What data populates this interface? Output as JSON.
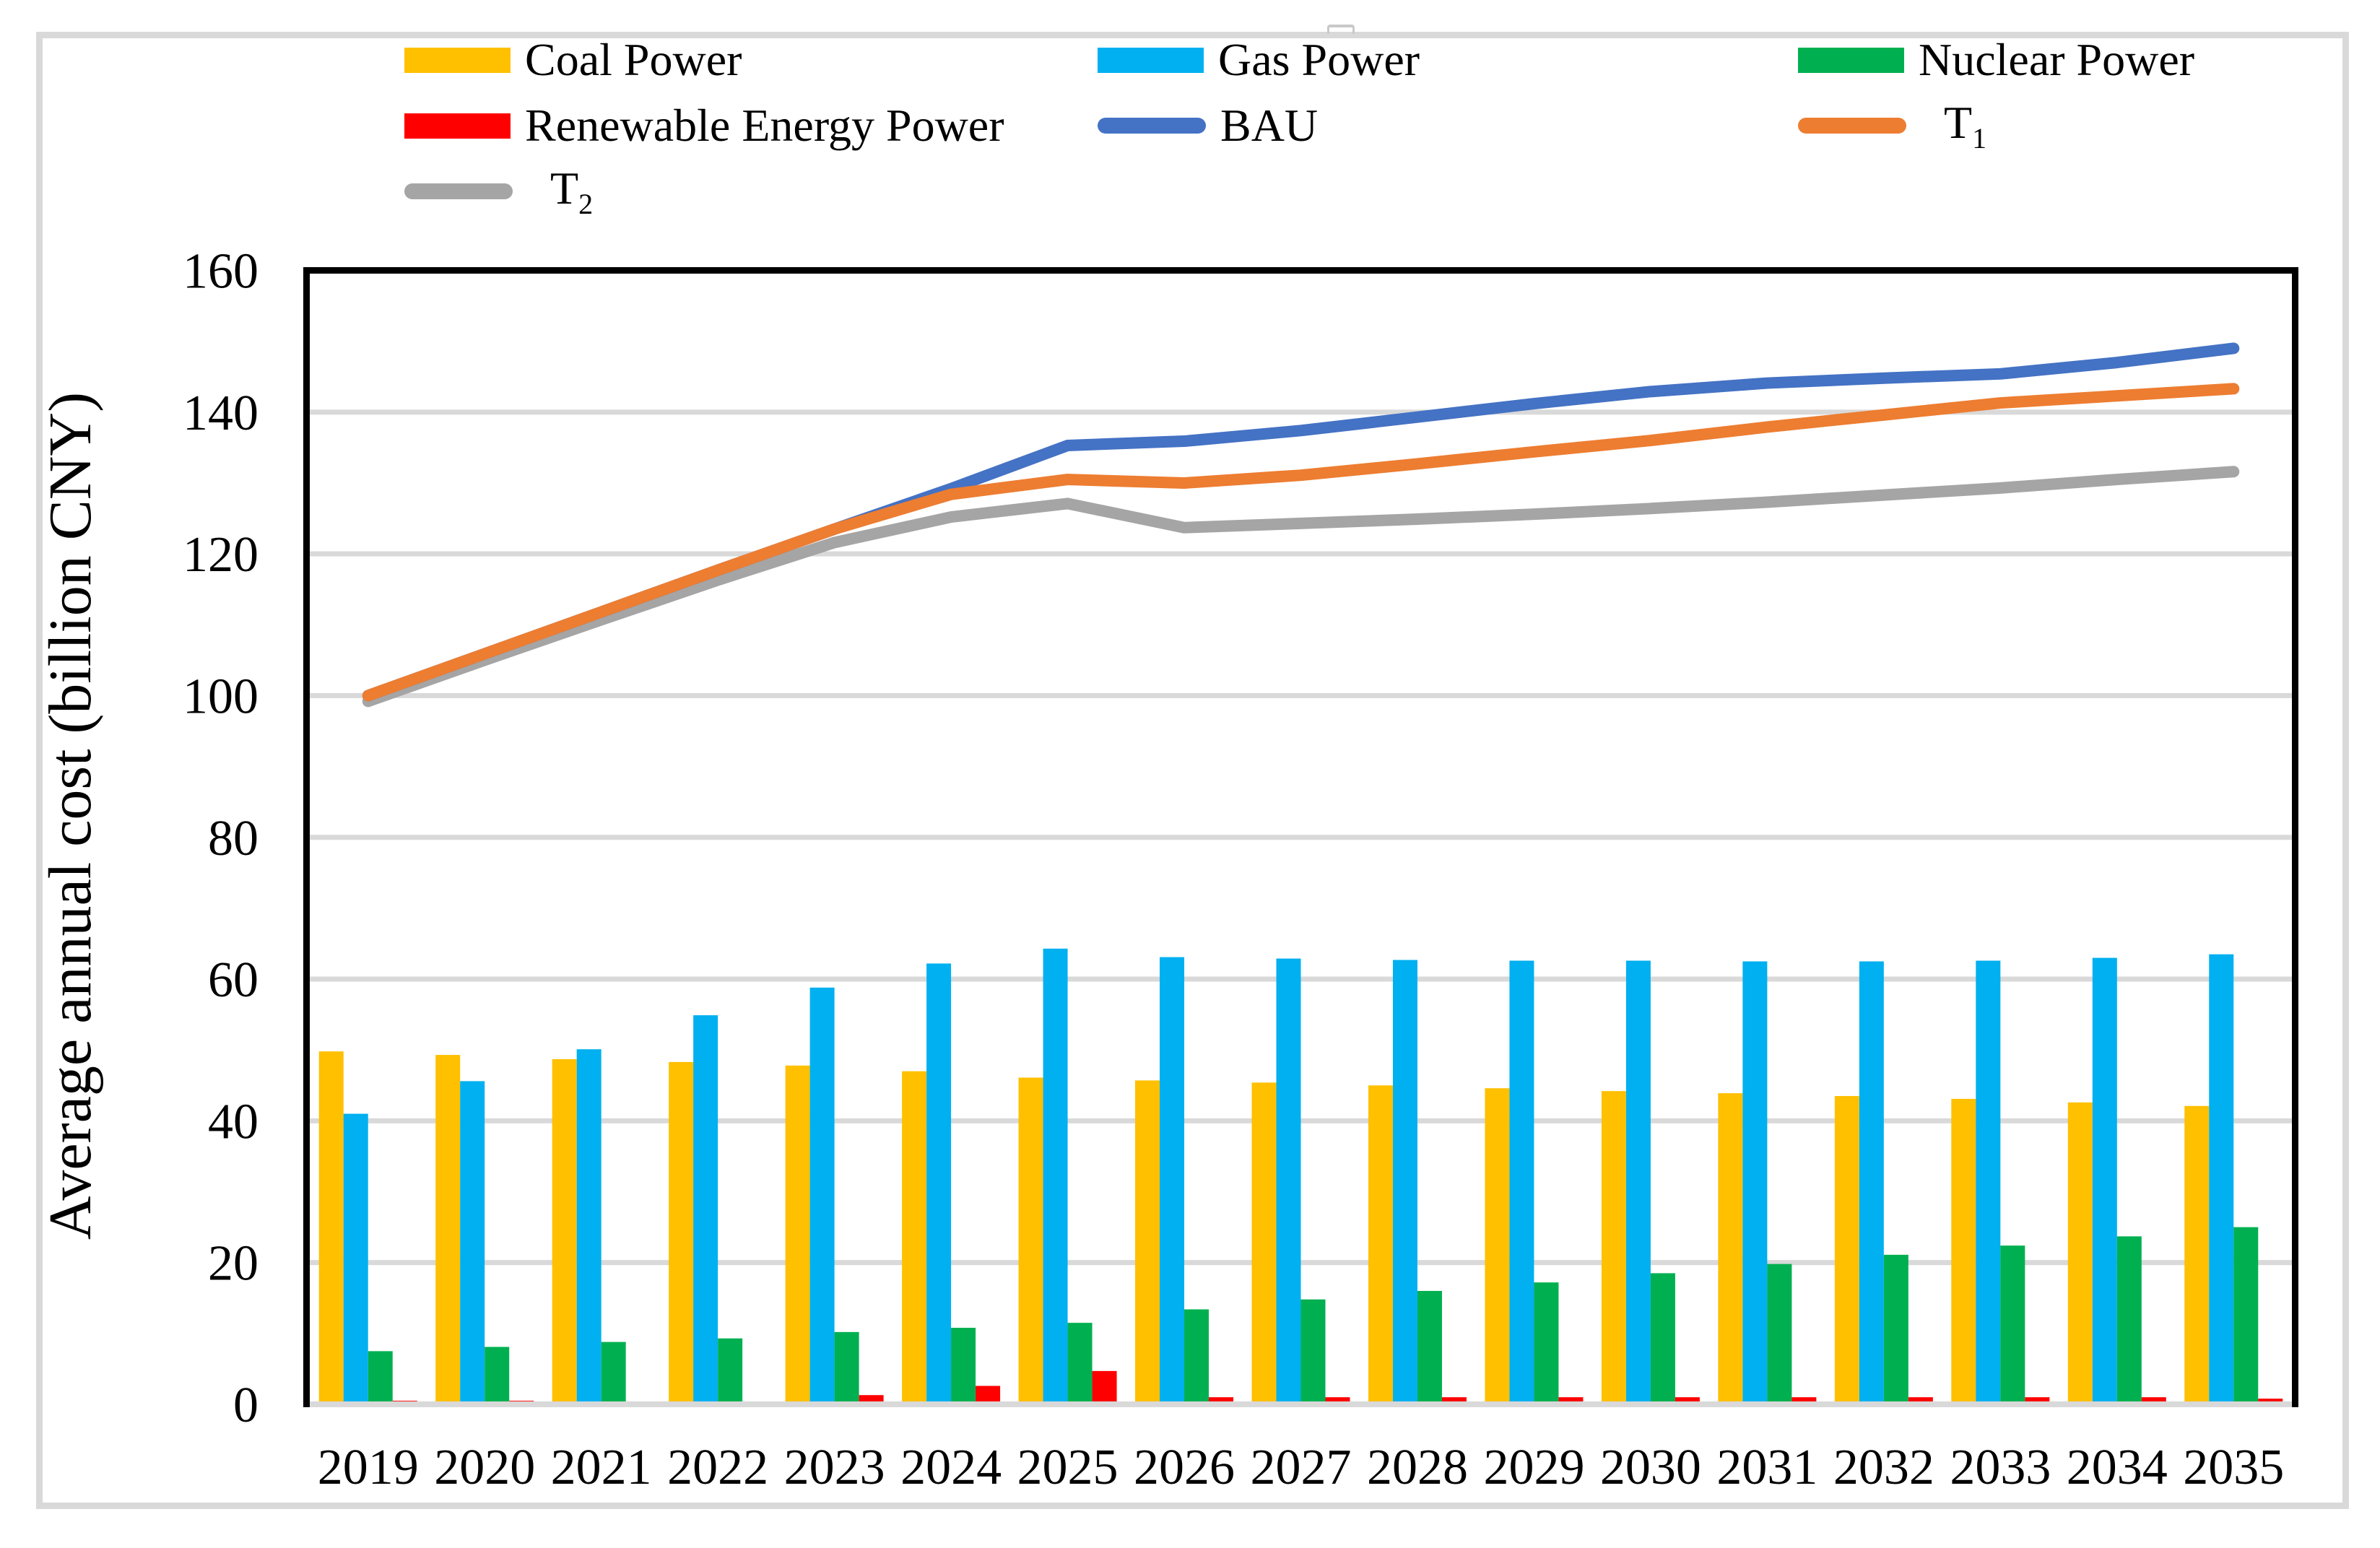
{
  "figure": {
    "background": "#FFFFFF",
    "border_color": "#D9D9D9",
    "grid_color": "#D9D9D9",
    "axis_color": "#000000"
  },
  "legend": {
    "items": [
      {
        "label": "Coal Power",
        "type": "bar",
        "color": "#FFC000",
        "row": 0,
        "col": 0
      },
      {
        "label": "Gas Power",
        "type": "bar",
        "color": "#00B0F0",
        "row": 0,
        "col": 1
      },
      {
        "label": "Nuclear Power",
        "type": "bar",
        "color": "#00B050",
        "row": 0,
        "col": 2
      },
      {
        "label": "Renewable Energy Power",
        "type": "bar",
        "color": "#FF0000",
        "row": 1,
        "col": 0
      },
      {
        "label": "BAU",
        "type": "line",
        "color": "#4472C4",
        "row": 1,
        "col": 1
      },
      {
        "label": "T",
        "subscript": "1",
        "type": "line",
        "color": "#ED7D31",
        "row": 1,
        "col": 2
      },
      {
        "label": "T",
        "subscript": "2",
        "type": "line",
        "color": "#A5A5A5",
        "row": 2,
        "col": 0
      }
    ]
  },
  "chart_data": {
    "type": "bar+line",
    "title": "",
    "xlabel": "",
    "ylabel": "Average annual cost (billion CNY)",
    "grid": "horizontal",
    "legend_position": "top",
    "x": [
      "2019",
      "2020",
      "2021",
      "2022",
      "2023",
      "2024",
      "2025",
      "2026",
      "2027",
      "2028",
      "2029",
      "2030",
      "2031",
      "2032",
      "2033",
      "2034",
      "2035"
    ],
    "y_axis": {
      "min": 0,
      "max": 160,
      "step": 20,
      "ticks": [
        0,
        20,
        40,
        60,
        80,
        100,
        120,
        140,
        160
      ]
    },
    "bar_series": [
      {
        "name": "Coal Power",
        "color": "#FFC000",
        "values": [
          49.8,
          49.3,
          48.7,
          48.3,
          47.8,
          47.0,
          46.1,
          45.7,
          45.4,
          45.0,
          44.6,
          44.2,
          43.9,
          43.5,
          43.1,
          42.6,
          42.1
        ]
      },
      {
        "name": "Gas Power",
        "color": "#00B0F0",
        "values": [
          41.0,
          45.6,
          50.1,
          54.9,
          58.8,
          62.2,
          64.3,
          63.1,
          62.9,
          62.7,
          62.6,
          62.6,
          62.5,
          62.5,
          62.6,
          63.0,
          63.5
        ]
      },
      {
        "name": "Nuclear Power",
        "color": "#00B050",
        "values": [
          7.5,
          8.1,
          8.8,
          9.3,
          10.2,
          10.8,
          11.5,
          13.4,
          14.8,
          16.0,
          17.2,
          18.5,
          19.8,
          21.1,
          22.4,
          23.7,
          25.0
        ]
      },
      {
        "name": "Renewable Energy Power",
        "color": "#FF0000",
        "values": [
          0.5,
          0.5,
          0.4,
          0.4,
          1.3,
          2.6,
          4.7,
          1.0,
          1.0,
          1.0,
          1.0,
          1.0,
          1.0,
          1.0,
          1.0,
          1.0,
          0.8
        ]
      }
    ],
    "line_series": [
      {
        "name": "BAU",
        "color": "#4472C4",
        "values": [
          100.0,
          105.9,
          111.8,
          117.7,
          123.5,
          129.2,
          135.3,
          135.9,
          137.4,
          139.3,
          141.2,
          142.9,
          144.1,
          144.8,
          145.4,
          147.0,
          149.0
        ]
      },
      {
        "name": "T1",
        "color": "#ED7D31",
        "values": [
          100.0,
          105.9,
          111.8,
          117.7,
          123.5,
          128.4,
          130.5,
          130.0,
          131.1,
          132.7,
          134.4,
          136.0,
          137.9,
          139.6,
          141.3,
          142.3,
          143.3
        ]
      },
      {
        "name": "T2",
        "color": "#A5A5A5",
        "values": [
          99.2,
          105.0,
          110.7,
          116.3,
          121.6,
          125.2,
          127.1,
          123.7,
          124.3,
          124.9,
          125.6,
          126.4,
          127.3,
          128.3,
          129.3,
          130.5,
          131.6
        ]
      }
    ]
  }
}
